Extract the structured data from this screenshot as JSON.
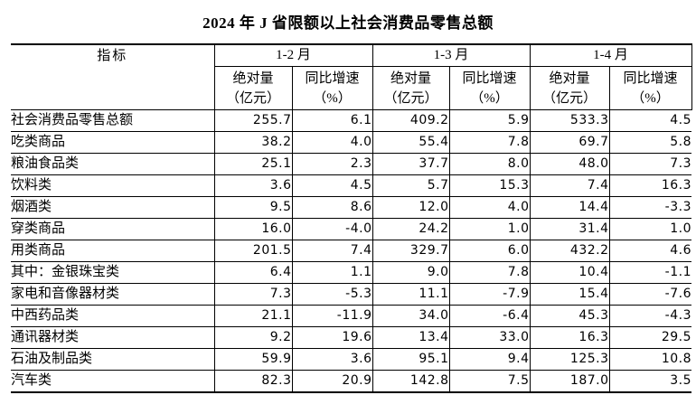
{
  "title": "2024 年 J 省限额以上社会消费品零售总额",
  "table": {
    "indicator_header": "指标",
    "period_headers": [
      "1-2 月",
      "1-3 月",
      "1-4 月"
    ],
    "sub_headers": {
      "absolute": "绝对量",
      "absolute_unit": "（亿元）",
      "growth": "同比增速",
      "growth_unit": "（%）"
    },
    "rows": [
      {
        "label": "社会消费品零售总额",
        "indent": 0,
        "values": [
          "255.7",
          "6.1",
          "409.2",
          "5.9",
          "533.3",
          "4.5"
        ]
      },
      {
        "label": "吃类商品",
        "indent": 2,
        "values": [
          "38.2",
          "4.0",
          "55.4",
          "7.8",
          "69.7",
          "5.8"
        ]
      },
      {
        "label": "粮油食品类",
        "indent": 3,
        "values": [
          "25.1",
          "2.3",
          "37.7",
          "8.0",
          "48.0",
          "7.3"
        ]
      },
      {
        "label": "饮料类",
        "indent": 3,
        "values": [
          "3.6",
          "4.5",
          "5.7",
          "15.3",
          "7.4",
          "16.3"
        ]
      },
      {
        "label": "烟酒类",
        "indent": 3,
        "values": [
          "9.5",
          "8.6",
          "12.0",
          "4.0",
          "14.4",
          "-3.3"
        ]
      },
      {
        "label": "穿类商品",
        "indent": 1,
        "values": [
          "16.0",
          "-4.0",
          "24.2",
          "1.0",
          "31.4",
          "1.0"
        ]
      },
      {
        "label": "用类商品",
        "indent": 1,
        "values": [
          "201.5",
          "7.4",
          "329.7",
          "6.0",
          "432.2",
          "4.6"
        ]
      },
      {
        "label": "其中：金银珠宝类",
        "indent": 0,
        "values": [
          "6.4",
          "1.1",
          "9.0",
          "7.8",
          "10.4",
          "-1.1"
        ]
      },
      {
        "label": "家电和音像器材类",
        "indent": 4,
        "values": [
          "7.3",
          "-5.3",
          "11.1",
          "-7.9",
          "15.4",
          "-7.6"
        ]
      },
      {
        "label": "中西药品类",
        "indent": 4,
        "values": [
          "21.1",
          "-11.9",
          "34.0",
          "-6.4",
          "45.3",
          "-4.3"
        ]
      },
      {
        "label": "通讯器材类",
        "indent": 4,
        "values": [
          "9.2",
          "19.6",
          "13.4",
          "33.0",
          "16.3",
          "29.5"
        ]
      },
      {
        "label": "石油及制品类",
        "indent": 4,
        "values": [
          "59.9",
          "3.6",
          "95.1",
          "9.4",
          "125.3",
          "10.8"
        ]
      },
      {
        "label": "汽车类",
        "indent": 4,
        "values": [
          "82.3",
          "20.9",
          "142.8",
          "7.5",
          "187.0",
          "3.5"
        ]
      }
    ]
  }
}
